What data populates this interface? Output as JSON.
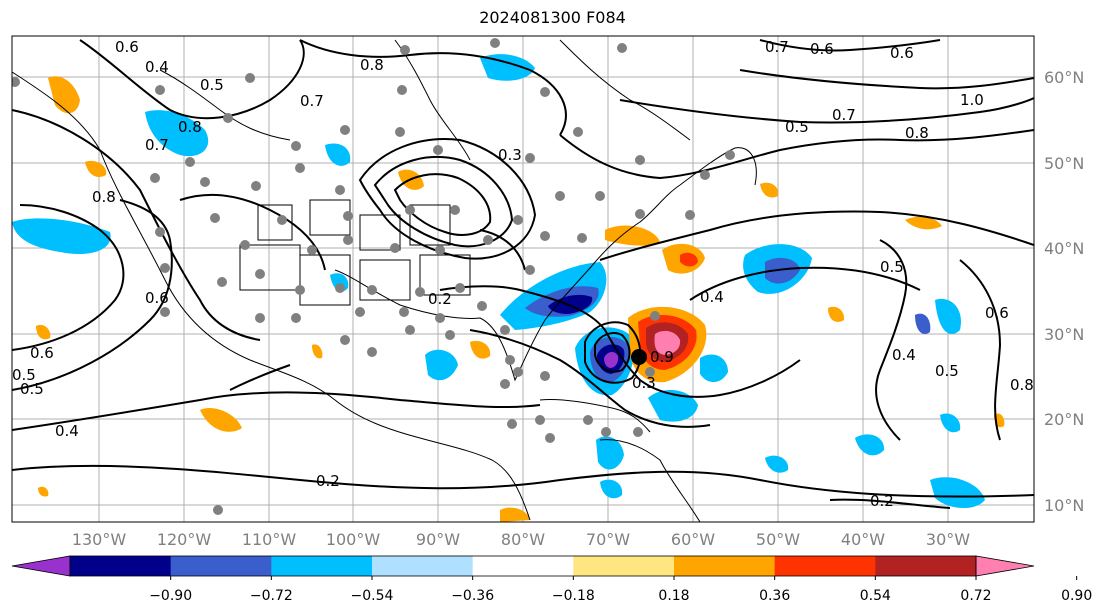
{
  "title": "2024081300 F084",
  "lat_labels": [
    "60°N",
    "50°N",
    "40°N",
    "30°N",
    "20°N",
    "10°N"
  ],
  "lon_labels": [
    "130°W",
    "120°W",
    "110°W",
    "100°W",
    "90°W",
    "80°W",
    "70°W",
    "60°W",
    "50°W",
    "40°W",
    "30°W"
  ],
  "contour_labels": [
    "0.8",
    "0.7",
    "0.4",
    "0.5",
    "0.6",
    "0.8",
    "0.7",
    "0.5",
    "0.7",
    "0.8",
    "1.0",
    "0.6",
    "0.6",
    "0.8",
    "0.7",
    "0.3",
    "0.2",
    "0.4",
    "0.6",
    "0.5",
    "0.4",
    "0.2",
    "0.2",
    "0.5",
    "0.6",
    "0.5",
    "0.4",
    "0.8",
    "0.5",
    "0.6",
    "0.9",
    "0.3"
  ],
  "colorbar": {
    "ticks": [
      "−0.90",
      "−0.72",
      "−0.54",
      "−0.36",
      "−0.18",
      "0.18",
      "0.36",
      "0.54",
      "0.72",
      "0.90"
    ],
    "colors": [
      "#9932cc",
      "#00008b",
      "#3a5fcd",
      "#00bfff",
      "#b0e0ff",
      "#ffffff",
      "#ffe680",
      "#ffa500",
      "#ff3300",
      "#b22222",
      "#ff80b0"
    ]
  }
}
